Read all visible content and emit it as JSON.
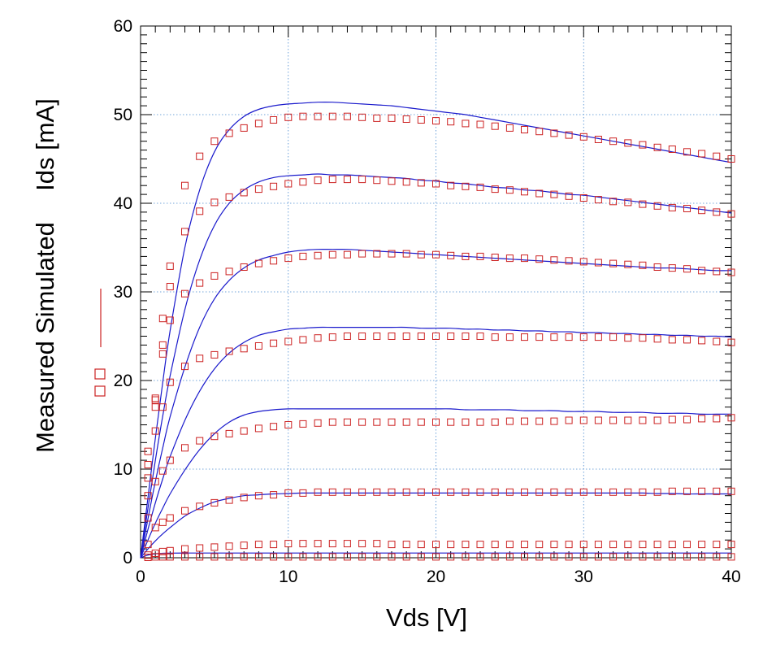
{
  "chart_data": {
    "type": "line",
    "xlabel": "Vds [V]",
    "ylabel_parts": [
      "Measured",
      "Simulated",
      "Ids [mA]"
    ],
    "xlim": [
      0,
      40
    ],
    "ylim": [
      0,
      60
    ],
    "x_ticks": [
      0,
      10,
      20,
      30,
      40
    ],
    "y_ticks": [
      0,
      10,
      20,
      30,
      40,
      50,
      60
    ],
    "grid": true,
    "colors": {
      "simulated": "#1a1acc",
      "measured": "#cc2222",
      "grid": "#4a8ad0"
    },
    "x": [
      0,
      0.5,
      1,
      1.5,
      2,
      3,
      4,
      5,
      6,
      7,
      8,
      9,
      10,
      11,
      12,
      13,
      14,
      15,
      16,
      17,
      18,
      19,
      20,
      21,
      22,
      23,
      24,
      25,
      26,
      27,
      28,
      29,
      30,
      31,
      32,
      33,
      34,
      35,
      36,
      37,
      38,
      39,
      40
    ],
    "series": [
      {
        "kind": "simulated",
        "values": [
          0,
          0.3,
          0.45,
          0.5,
          0.52,
          0.53,
          0.53,
          0.53,
          0.53,
          0.53,
          0.53,
          0.53,
          0.53,
          0.53,
          0.53,
          0.53,
          0.53,
          0.53,
          0.53,
          0.53,
          0.53,
          0.53,
          0.53,
          0.53,
          0.53,
          0.53,
          0.53,
          0.53,
          0.53,
          0.53,
          0.53,
          0.53,
          0.53,
          0.53,
          0.53,
          0.53,
          0.53,
          0.53,
          0.53,
          0.53,
          0.53,
          0.53,
          0.53
        ]
      },
      {
        "kind": "simulated",
        "values": [
          0,
          1.0,
          1.9,
          2.7,
          3.4,
          4.7,
          5.6,
          6.3,
          6.7,
          7.0,
          7.1,
          7.2,
          7.25,
          7.3,
          7.3,
          7.3,
          7.3,
          7.3,
          7.3,
          7.3,
          7.3,
          7.3,
          7.3,
          7.3,
          7.3,
          7.3,
          7.3,
          7.3,
          7.3,
          7.3,
          7.3,
          7.3,
          7.3,
          7.3,
          7.3,
          7.3,
          7.3,
          7.25,
          7.25,
          7.2,
          7.2,
          7.2,
          7.2
        ]
      },
      {
        "kind": "simulated",
        "values": [
          0,
          2.0,
          3.9,
          5.6,
          7.2,
          9.9,
          12.2,
          14.0,
          15.3,
          16.1,
          16.5,
          16.7,
          16.8,
          16.8,
          16.8,
          16.8,
          16.8,
          16.8,
          16.8,
          16.8,
          16.8,
          16.8,
          16.8,
          16.8,
          16.7,
          16.7,
          16.7,
          16.7,
          16.6,
          16.6,
          16.6,
          16.5,
          16.5,
          16.5,
          16.4,
          16.4,
          16.4,
          16.3,
          16.3,
          16.3,
          16.2,
          16.2,
          16.2
        ]
      },
      {
        "kind": "simulated",
        "values": [
          0,
          3.2,
          6.2,
          8.9,
          11.4,
          15.5,
          18.8,
          21.3,
          23.1,
          24.3,
          25.1,
          25.5,
          25.8,
          25.9,
          26.0,
          26.0,
          26.0,
          26.0,
          26.0,
          26.0,
          26.0,
          25.9,
          25.9,
          25.9,
          25.8,
          25.8,
          25.7,
          25.7,
          25.6,
          25.6,
          25.5,
          25.5,
          25.4,
          25.4,
          25.3,
          25.3,
          25.2,
          25.2,
          25.1,
          25.1,
          25.0,
          25.0,
          24.9
        ]
      },
      {
        "kind": "simulated",
        "values": [
          0,
          4.4,
          8.6,
          12.4,
          15.9,
          21.5,
          26.0,
          29.2,
          31.3,
          32.7,
          33.6,
          34.1,
          34.5,
          34.7,
          34.8,
          34.8,
          34.8,
          34.7,
          34.6,
          34.5,
          34.4,
          34.3,
          34.2,
          34.1,
          34.0,
          33.9,
          33.8,
          33.7,
          33.6,
          33.5,
          33.4,
          33.3,
          33.2,
          33.1,
          33.0,
          32.9,
          32.8,
          32.7,
          32.7,
          32.6,
          32.5,
          32.4,
          32.4
        ]
      },
      {
        "kind": "simulated",
        "values": [
          0,
          5.6,
          11.0,
          16.0,
          20.5,
          28.0,
          33.6,
          37.5,
          40.0,
          41.5,
          42.4,
          42.9,
          43.1,
          43.2,
          43.3,
          43.2,
          43.2,
          43.1,
          43.0,
          42.9,
          42.8,
          42.6,
          42.5,
          42.3,
          42.2,
          42.0,
          41.8,
          41.7,
          41.5,
          41.4,
          41.2,
          41.0,
          40.9,
          40.7,
          40.5,
          40.3,
          40.1,
          39.9,
          39.7,
          39.5,
          39.3,
          39.1,
          38.9
        ]
      },
      {
        "kind": "simulated",
        "values": [
          0,
          6.8,
          13.5,
          19.8,
          25.6,
          35.0,
          41.5,
          45.8,
          48.3,
          49.8,
          50.6,
          51.0,
          51.2,
          51.3,
          51.4,
          51.4,
          51.3,
          51.2,
          51.1,
          51.0,
          50.8,
          50.6,
          50.4,
          50.2,
          50.0,
          49.7,
          49.4,
          49.1,
          48.8,
          48.5,
          48.2,
          47.9,
          47.6,
          47.3,
          47.0,
          46.7,
          46.4,
          46.1,
          45.8,
          45.5,
          45.2,
          44.9,
          44.6
        ]
      },
      {
        "kind": "measured",
        "values": [
          0,
          0.05,
          0.1,
          0.1,
          0.1,
          0.1,
          0.1,
          0.1,
          0.1,
          0.1,
          0.1,
          0.1,
          0.1,
          0.1,
          0.1,
          0.1,
          0.1,
          0.1,
          0.1,
          0.1,
          0.1,
          0.1,
          0.1,
          0.1,
          0.1,
          0.1,
          0.1,
          0.1,
          0.1,
          0.1,
          0.1,
          0.1,
          0.1,
          0.1,
          0.1,
          0.1,
          0.1,
          0.1,
          0.1,
          0.1,
          0.1,
          0.1,
          0.1
        ]
      },
      {
        "kind": "measured",
        "values": [
          0,
          0.3,
          0.5,
          0.7,
          0.8,
          1.0,
          1.1,
          1.2,
          1.3,
          1.4,
          1.5,
          1.5,
          1.6,
          1.6,
          1.6,
          1.6,
          1.6,
          1.6,
          1.6,
          1.5,
          1.5,
          1.5,
          1.5,
          1.5,
          1.5,
          1.5,
          1.5,
          1.5,
          1.5,
          1.5,
          1.5,
          1.5,
          1.5,
          1.5,
          1.5,
          1.5,
          1.5,
          1.5,
          1.5,
          1.5,
          1.5,
          1.5,
          1.5
        ]
      },
      {
        "kind": "measured",
        "values": [
          0,
          1.5,
          3.4,
          4.0,
          4.5,
          5.3,
          5.8,
          6.2,
          6.5,
          6.8,
          7.0,
          7.1,
          7.3,
          7.3,
          7.4,
          7.4,
          7.4,
          7.4,
          7.4,
          7.4,
          7.4,
          7.4,
          7.4,
          7.4,
          7.4,
          7.4,
          7.4,
          7.4,
          7.4,
          7.4,
          7.4,
          7.4,
          7.4,
          7.4,
          7.4,
          7.4,
          7.4,
          7.4,
          7.5,
          7.5,
          7.5,
          7.5,
          7.5
        ]
      },
      {
        "kind": "measured",
        "values": [
          0,
          4.5,
          8.6,
          9.8,
          11.0,
          12.4,
          13.2,
          13.7,
          14.0,
          14.3,
          14.6,
          14.8,
          15.0,
          15.1,
          15.2,
          15.3,
          15.3,
          15.3,
          15.3,
          15.3,
          15.3,
          15.3,
          15.3,
          15.3,
          15.3,
          15.3,
          15.3,
          15.4,
          15.4,
          15.4,
          15.4,
          15.5,
          15.5,
          15.5,
          15.5,
          15.5,
          15.5,
          15.5,
          15.6,
          15.6,
          15.7,
          15.7,
          15.8
        ]
      },
      {
        "kind": "measured",
        "values": [
          0,
          7.0,
          14.3,
          17.0,
          19.8,
          21.6,
          22.5,
          22.9,
          23.3,
          23.6,
          23.9,
          24.2,
          24.4,
          24.6,
          24.8,
          24.9,
          25.0,
          25.0,
          25.0,
          25.0,
          25.0,
          25.0,
          25.0,
          25.0,
          25.0,
          25.0,
          24.9,
          24.9,
          24.9,
          24.9,
          24.9,
          24.9,
          24.9,
          24.9,
          24.9,
          24.8,
          24.8,
          24.7,
          24.6,
          24.6,
          24.5,
          24.4,
          24.3
        ]
      },
      {
        "kind": "measured",
        "values": [
          0,
          9.0,
          17.0,
          23.0,
          26.8,
          29.8,
          31.0,
          31.8,
          32.3,
          32.8,
          33.2,
          33.5,
          33.8,
          34.0,
          34.1,
          34.2,
          34.2,
          34.3,
          34.3,
          34.3,
          34.3,
          34.2,
          34.2,
          34.1,
          34.0,
          34.0,
          33.9,
          33.8,
          33.8,
          33.7,
          33.6,
          33.5,
          33.4,
          33.3,
          33.2,
          33.1,
          33.0,
          32.8,
          32.7,
          32.6,
          32.4,
          32.3,
          32.2
        ]
      },
      {
        "kind": "measured",
        "values": [
          0,
          10.5,
          18.0,
          27.0,
          30.6,
          36.8,
          39.1,
          40.1,
          40.7,
          41.2,
          41.6,
          41.9,
          42.2,
          42.4,
          42.6,
          42.7,
          42.7,
          42.7,
          42.6,
          42.5,
          42.4,
          42.3,
          42.2,
          42.0,
          41.9,
          41.8,
          41.6,
          41.5,
          41.3,
          41.1,
          41.0,
          40.8,
          40.6,
          40.4,
          40.2,
          40.1,
          39.9,
          39.7,
          39.5,
          39.4,
          39.2,
          39.0,
          38.8
        ]
      },
      {
        "kind": "measured",
        "values": [
          0,
          12.0,
          17.8,
          24.0,
          32.9,
          42.0,
          45.3,
          47.0,
          47.9,
          48.5,
          49.0,
          49.4,
          49.7,
          49.8,
          49.8,
          49.8,
          49.8,
          49.7,
          49.6,
          49.6,
          49.5,
          49.4,
          49.3,
          49.2,
          49.0,
          48.9,
          48.7,
          48.5,
          48.3,
          48.1,
          47.9,
          47.7,
          47.5,
          47.2,
          47.0,
          46.8,
          46.6,
          46.3,
          46.1,
          45.8,
          45.6,
          45.3,
          45.0
        ]
      }
    ]
  }
}
